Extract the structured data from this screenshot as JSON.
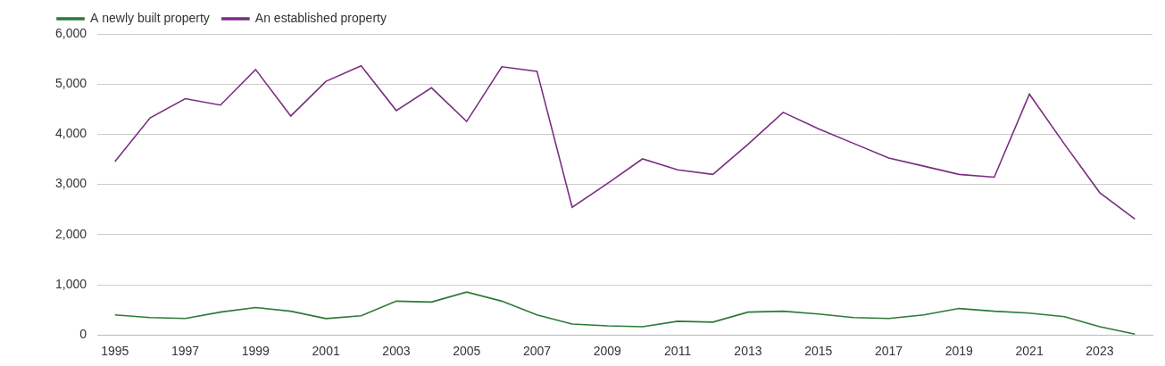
{
  "chart_data": {
    "type": "line",
    "categories": [
      "1995",
      null,
      "1997",
      null,
      "1999",
      null,
      "2001",
      null,
      "2003",
      null,
      "2005",
      null,
      "2007",
      null,
      "2009",
      null,
      "2011",
      null,
      "2013",
      null,
      "2015",
      null,
      "2017",
      null,
      "2019",
      null,
      "2021",
      null,
      "2023",
      null
    ],
    "series": [
      {
        "name": "A newly built property",
        "color": "#2b7a35",
        "values": [
          400,
          345,
          327,
          455,
          545,
          473,
          327,
          382,
          673,
          655,
          855,
          673,
          400,
          218,
          182,
          164,
          273,
          255,
          455,
          473,
          418,
          345,
          327,
          400,
          527,
          473,
          436,
          364,
          164,
          18
        ]
      },
      {
        "name": "An established property",
        "color": "#7b2d82",
        "values": [
          3455,
          4327,
          4709,
          4582,
          5291,
          4364,
          5055,
          5364,
          4473,
          4927,
          4255,
          5345,
          5255,
          2545,
          3018,
          3509,
          3291,
          3200,
          3800,
          4436,
          4109,
          3818,
          3527,
          3364,
          3200,
          3145,
          4800,
          3800,
          2836,
          2309
        ]
      }
    ],
    "ylim": [
      0,
      6000
    ],
    "yticks": [
      0,
      {
        "value": 1000,
        "label": "1,000"
      },
      {
        "value": 2000,
        "label": "2,000"
      },
      {
        "value": 3000,
        "label": "3,000"
      },
      {
        "value": 4000,
        "label": "4,000"
      },
      {
        "value": 5000,
        "label": "5,000"
      },
      {
        "value": 6000,
        "label": "6,000"
      }
    ],
    "grid": true,
    "legend": "top-left"
  }
}
